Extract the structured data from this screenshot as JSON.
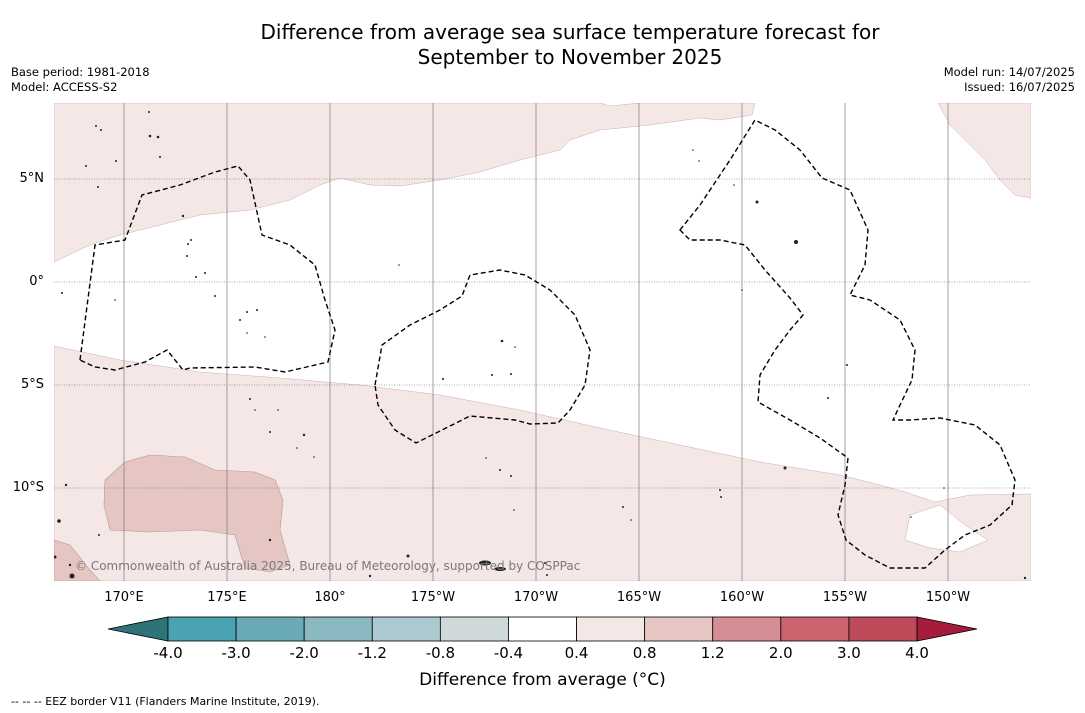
{
  "title_line1": "Difference from average sea surface temperature forecast for",
  "title_line2": "September to November 2025",
  "meta_left": {
    "base_period": "Base period: 1981-2018",
    "model": "Model: ACCESS-S2"
  },
  "meta_right": {
    "model_run": "Model run: 14/07/2025",
    "issued": "Issued: 16/07/2025"
  },
  "lat_labels": [
    "5°N",
    "0°",
    "5°S",
    "10°S"
  ],
  "lon_labels": [
    "170°E",
    "175°E",
    "180°",
    "175°W",
    "170°W",
    "165°W",
    "160°W",
    "155°W",
    "150°W"
  ],
  "copyright": "© Commonwealth of Australia 2025, Bureau of Meteorology, supported by COSPPac",
  "colorbar": {
    "ticks": [
      "-4.0",
      "-3.0",
      "-2.0",
      "-1.2",
      "-0.8",
      "-0.4",
      "0.4",
      "0.8",
      "1.2",
      "2.0",
      "3.0",
      "4.0"
    ],
    "colors": [
      "#2d7479",
      "#4aa2b3",
      "#6aaab8",
      "#8bb9c2",
      "#abc9ce",
      "#cfd9da",
      "#ffffff",
      "#f4e7e6",
      "#e6c6c2",
      "#d48e94",
      "#c9636d",
      "#be4a5a",
      "#a61c3c"
    ],
    "label": "Difference from average (°C)"
  },
  "eez_note": "--  --  -- EEZ border V11 (Flanders Marine Institute, 2019)."
}
